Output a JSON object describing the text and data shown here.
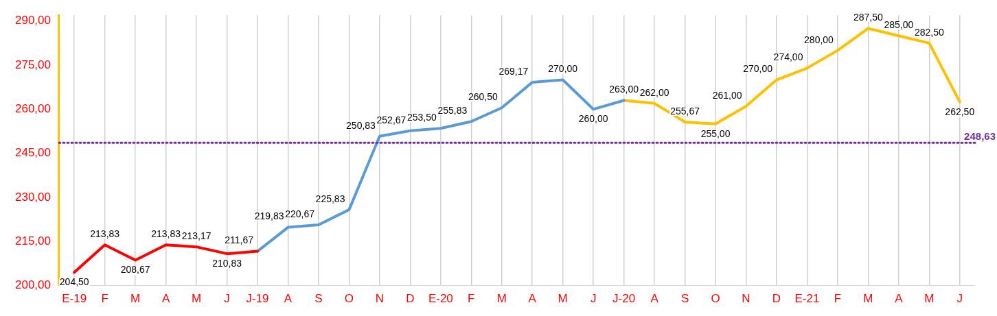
{
  "chart_data": {
    "type": "line",
    "categories": [
      "E-19",
      "F",
      "M",
      "A",
      "M",
      "J",
      "J-19",
      "A",
      "S",
      "O",
      "N",
      "D",
      "E-20",
      "F",
      "M",
      "A",
      "M",
      "J",
      "J-20",
      "A",
      "S",
      "O",
      "N",
      "D",
      "E-21",
      "F",
      "M",
      "A",
      "M",
      "J"
    ],
    "series": [
      {
        "color": "#ff0000",
        "values": [
          204.5,
          213.83,
          208.67,
          213.83,
          213.17,
          210.83,
          211.67,
          null,
          null,
          null,
          null,
          null,
          null,
          null,
          null,
          null,
          null,
          null,
          null,
          null,
          null,
          null,
          null,
          null,
          null,
          null,
          null,
          null,
          null,
          null
        ],
        "value_labels": [
          "204,50",
          "213,83",
          "208,67",
          "213,83",
          "213,17",
          "210,83",
          null,
          null,
          null,
          null,
          null,
          null,
          null,
          null,
          null,
          null,
          null,
          null,
          null,
          null,
          null,
          null,
          null,
          null,
          null,
          null,
          null,
          null,
          null,
          null
        ]
      },
      {
        "color": "#5b9bd5",
        "values": [
          null,
          null,
          null,
          null,
          null,
          null,
          211.67,
          219.83,
          220.67,
          225.83,
          250.83,
          252.67,
          253.5,
          255.83,
          260.5,
          269.17,
          270.0,
          260.0,
          263.0,
          null,
          null,
          null,
          null,
          null,
          null,
          null,
          null,
          null,
          null,
          null
        ],
        "value_labels": [
          null,
          null,
          null,
          null,
          null,
          null,
          "211,67",
          "219,83",
          "220,67",
          "225,83",
          "250,83",
          "252,67",
          "253,50",
          "255,83",
          "260,50",
          "269,17",
          "270,00",
          "260,00",
          "263,00",
          null,
          null,
          null,
          null,
          null,
          null,
          null,
          null,
          null,
          null,
          null
        ]
      },
      {
        "color": "#ffc000",
        "values": [
          null,
          null,
          null,
          null,
          null,
          null,
          null,
          null,
          null,
          null,
          null,
          null,
          null,
          null,
          null,
          null,
          null,
          null,
          263.0,
          262.0,
          255.67,
          255.0,
          261.0,
          270.0,
          274.0,
          280.0,
          287.5,
          285.0,
          282.5,
          262.5
        ],
        "value_labels": [
          null,
          null,
          null,
          null,
          null,
          null,
          null,
          null,
          null,
          null,
          null,
          null,
          null,
          null,
          null,
          null,
          null,
          null,
          null,
          "262,00",
          "255,67",
          "255,00",
          "261,00",
          "270,00",
          "274,00",
          "280,00",
          "287,50",
          "285,00",
          "282,50",
          "262,50"
        ]
      }
    ],
    "ylim": [
      200,
      292
    ],
    "yticks": [
      {
        "value": 200,
        "label": "200,00"
      },
      {
        "value": 215,
        "label": "215,00"
      },
      {
        "value": 230,
        "label": "230,00"
      },
      {
        "value": 245,
        "label": "245,00"
      },
      {
        "value": 260,
        "label": "260,00"
      },
      {
        "value": 275,
        "label": "275,00"
      },
      {
        "value": 290,
        "label": "290,00"
      }
    ],
    "ref_lines": [
      {
        "axis": "y",
        "value": 248.63,
        "label": "248,63",
        "color": "#7030a0",
        "line_style": "dotted"
      }
    ],
    "grid": "x",
    "legend": false,
    "marker": "none",
    "line_style": "solid"
  }
}
